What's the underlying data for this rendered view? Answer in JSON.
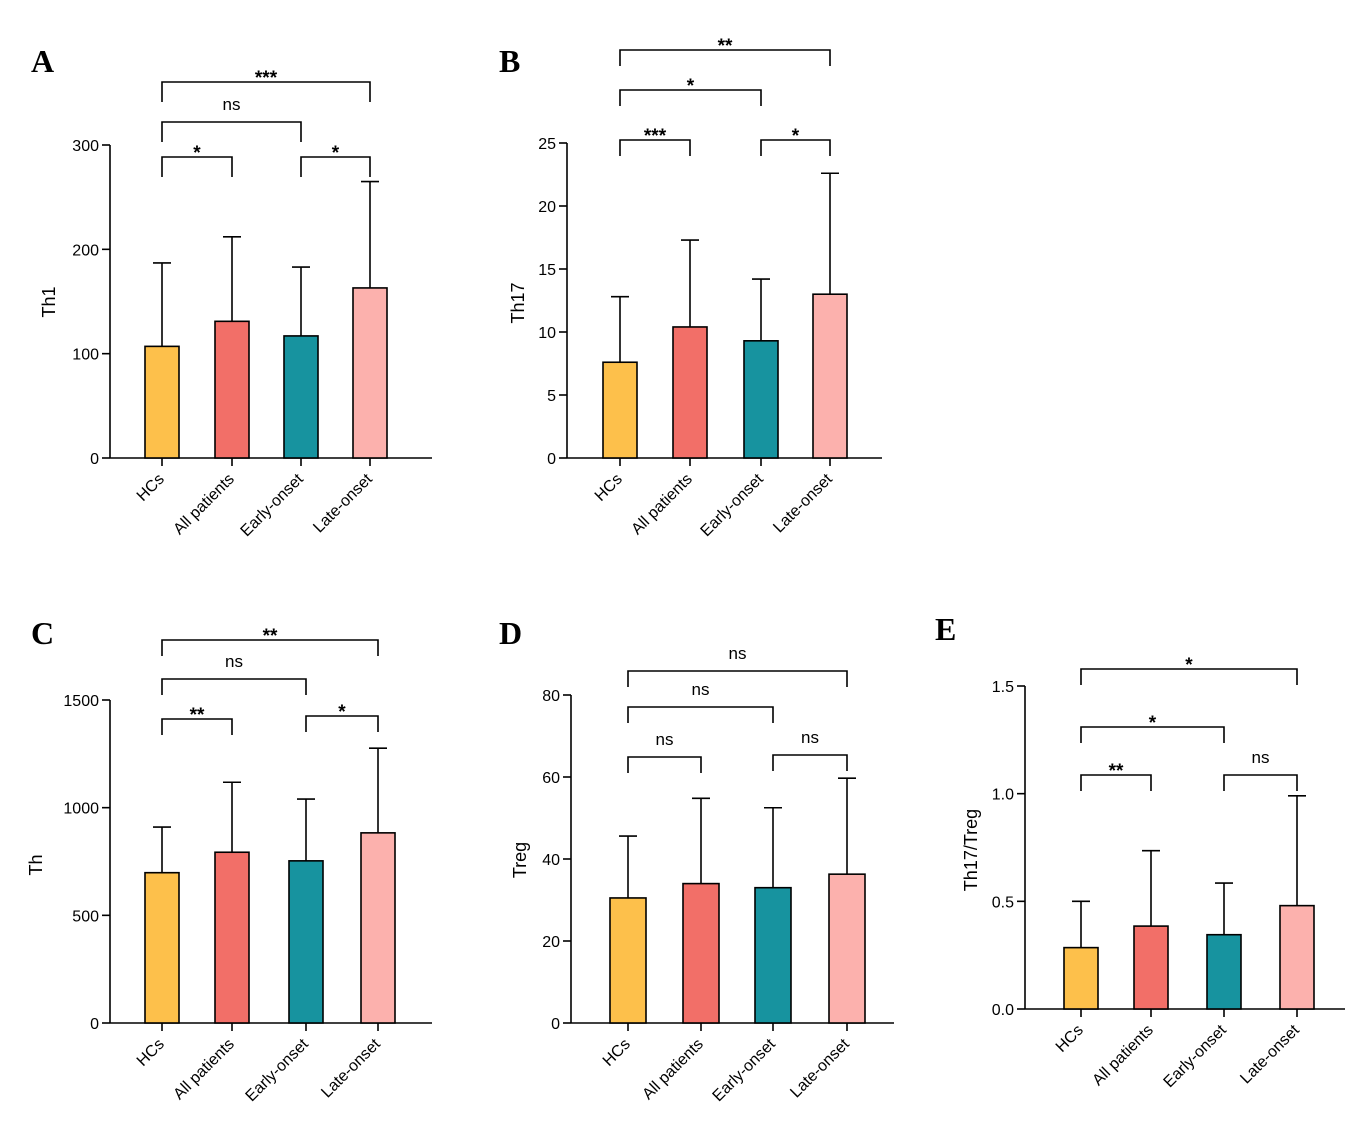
{
  "categories": [
    "HCs",
    "All patients",
    "Early-onset",
    "Late-onset"
  ],
  "colors": {
    "HCs": "#FDC04B",
    "All patients": "#F26F68",
    "Early-onset": "#17939F",
    "Late-onset": "#FCB1AD"
  },
  "chart_data": [
    {
      "panel": "A",
      "type": "bar",
      "ylabel": "Th1",
      "ylim": [
        0,
        300
      ],
      "yticks": [
        0,
        100,
        200,
        300
      ],
      "categories": [
        "HCs",
        "All patients",
        "Early-onset",
        "Late-onset"
      ],
      "values": [
        107,
        131,
        117,
        163
      ],
      "errors_upper": [
        187,
        212,
        183,
        265
      ],
      "comparisons": [
        {
          "groups": [
            "HCs",
            "All patients"
          ],
          "label": "*"
        },
        {
          "groups": [
            "Early-onset",
            "Late-onset"
          ],
          "label": "*"
        },
        {
          "groups": [
            "HCs",
            "Early-onset"
          ],
          "label": "ns"
        },
        {
          "groups": [
            "HCs",
            "Late-onset"
          ],
          "label": "***"
        }
      ]
    },
    {
      "panel": "B",
      "type": "bar",
      "ylabel": "Th17",
      "ylim": [
        0,
        25
      ],
      "yticks": [
        0,
        5,
        10,
        15,
        20,
        25
      ],
      "categories": [
        "HCs",
        "All patients",
        "Early-onset",
        "Late-onset"
      ],
      "values": [
        7.6,
        10.4,
        9.3,
        13.0
      ],
      "errors_upper": [
        12.8,
        17.3,
        14.2,
        22.6
      ],
      "comparisons": [
        {
          "groups": [
            "HCs",
            "All patients"
          ],
          "label": "***"
        },
        {
          "groups": [
            "Early-onset",
            "Late-onset"
          ],
          "label": "*"
        },
        {
          "groups": [
            "HCs",
            "Early-onset"
          ],
          "label": "*"
        },
        {
          "groups": [
            "HCs",
            "Late-onset"
          ],
          "label": "**"
        }
      ]
    },
    {
      "panel": "C",
      "type": "bar",
      "ylabel": "Th",
      "ylim": [
        0,
        1500
      ],
      "yticks": [
        0,
        500,
        1000,
        1500
      ],
      "categories": [
        "HCs",
        "All patients",
        "Early-onset",
        "Late-onset"
      ],
      "values": [
        698,
        793,
        753,
        883
      ],
      "errors_upper": [
        910,
        1118,
        1040,
        1276
      ],
      "comparisons": [
        {
          "groups": [
            "HCs",
            "All patients"
          ],
          "label": "**"
        },
        {
          "groups": [
            "Early-onset",
            "Late-onset"
          ],
          "label": "*"
        },
        {
          "groups": [
            "HCs",
            "Early-onset"
          ],
          "label": "ns"
        },
        {
          "groups": [
            "HCs",
            "Late-onset"
          ],
          "label": "**"
        }
      ]
    },
    {
      "panel": "D",
      "type": "bar",
      "ylabel": "Treg",
      "ylim": [
        0,
        80
      ],
      "yticks": [
        0,
        20,
        40,
        60,
        80
      ],
      "categories": [
        "HCs",
        "All patients",
        "Early-onset",
        "Late-onset"
      ],
      "values": [
        30.5,
        34.0,
        33.0,
        36.3
      ],
      "errors_upper": [
        45.6,
        54.8,
        52.5,
        59.7
      ],
      "comparisons": [
        {
          "groups": [
            "HCs",
            "All patients"
          ],
          "label": "ns"
        },
        {
          "groups": [
            "Early-onset",
            "Late-onset"
          ],
          "label": "ns"
        },
        {
          "groups": [
            "HCs",
            "Early-onset"
          ],
          "label": "ns"
        },
        {
          "groups": [
            "HCs",
            "Late-onset"
          ],
          "label": "ns"
        }
      ]
    },
    {
      "panel": "E",
      "type": "bar",
      "ylabel": "Th17/Treg",
      "ylim": [
        0,
        1.5
      ],
      "yticks": [
        "0.0",
        "0.5",
        "1.0",
        "1.5"
      ],
      "categories": [
        "HCs",
        "All patients",
        "Early-onset",
        "Late-onset"
      ],
      "values": [
        0.285,
        0.385,
        0.345,
        0.48
      ],
      "errors_upper": [
        0.5,
        0.735,
        0.585,
        0.99
      ],
      "comparisons": [
        {
          "groups": [
            "HCs",
            "All patients"
          ],
          "label": "**"
        },
        {
          "groups": [
            "Early-onset",
            "Late-onset"
          ],
          "label": "ns"
        },
        {
          "groups": [
            "HCs",
            "Early-onset"
          ],
          "label": "*"
        },
        {
          "groups": [
            "HCs",
            "Late-onset"
          ],
          "label": "*"
        }
      ]
    }
  ]
}
